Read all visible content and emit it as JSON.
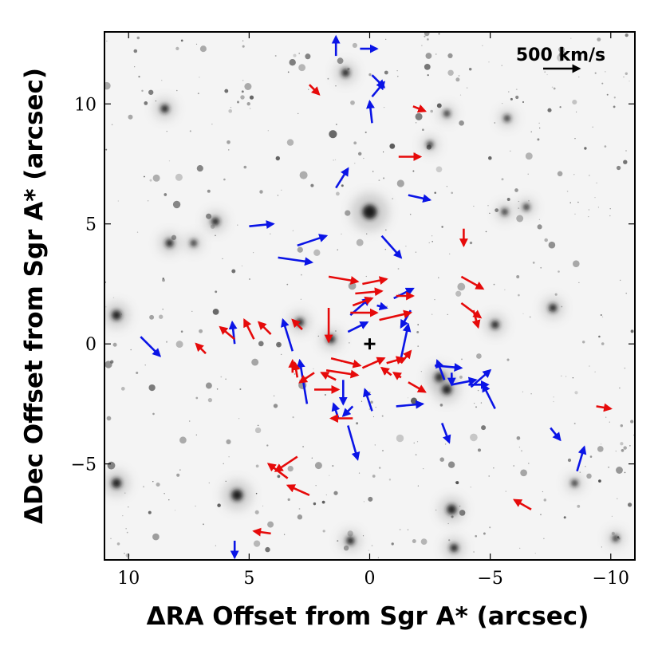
{
  "chart_data": {
    "type": "scatter",
    "title": "",
    "xlabel": "ΔRA Offset from Sgr A* (arcsec)",
    "ylabel": "ΔDec Offset from Sgr A* (arcsec)",
    "xlim": [
      11,
      -11
    ],
    "ylim": [
      -9,
      13
    ],
    "x_inverted": true,
    "xticks": [
      10,
      5,
      0,
      -5,
      -10
    ],
    "yticks": [
      -5,
      0,
      5,
      10
    ],
    "xtick_labels": [
      "10",
      "5",
      "0",
      "−5",
      "−10"
    ],
    "ytick_labels": [
      "−5",
      "0",
      "5",
      "10"
    ],
    "grid": false,
    "background": "grayscale near-infrared star field image",
    "reference_marker": {
      "name": "Sgr A*",
      "x": 0,
      "y": 0,
      "symbol": "+"
    },
    "scale_bar": {
      "label": "500 km/s",
      "dx_arcsec": -1.5
    },
    "velocity_arrows_note": "arrow length and direction show proper motion; blue = approaching, red = receding",
    "series": [
      {
        "color": "#0a14e6",
        "vectors": [
          [
            1.4,
            12.0,
            0.0,
            0.8
          ],
          [
            0.4,
            12.3,
            -0.7,
            0.0
          ],
          [
            -0.1,
            11.2,
            -0.5,
            -0.5
          ],
          [
            -0.1,
            10.3,
            -0.5,
            0.6
          ],
          [
            -0.1,
            9.2,
            0.1,
            0.9
          ],
          [
            1.4,
            6.5,
            -0.5,
            0.8
          ],
          [
            -1.6,
            6.2,
            -0.9,
            -0.2
          ],
          [
            5.0,
            4.9,
            -1.0,
            0.1
          ],
          [
            3.0,
            4.1,
            -1.2,
            0.4
          ],
          [
            3.8,
            3.6,
            -1.4,
            -0.2
          ],
          [
            -0.5,
            4.5,
            -0.8,
            -0.9
          ],
          [
            -1.0,
            1.9,
            -0.8,
            0.4
          ],
          [
            -0.3,
            1.6,
            -0.4,
            -0.1
          ],
          [
            -1.7,
            1.4,
            0.4,
            -0.7
          ],
          [
            0.8,
            1.2,
            -0.8,
            0.7
          ],
          [
            0.9,
            0.5,
            -0.8,
            0.4
          ],
          [
            9.5,
            0.3,
            -0.8,
            -0.8
          ],
          [
            5.6,
            0.0,
            0.1,
            0.9
          ],
          [
            3.2,
            -0.3,
            0.4,
            1.3
          ],
          [
            -1.3,
            -0.6,
            -0.3,
            1.4
          ],
          [
            -2.7,
            -0.9,
            -1.1,
            -0.1
          ],
          [
            1.1,
            -1.5,
            0.0,
            -1.0
          ],
          [
            2.6,
            -2.5,
            0.3,
            1.8
          ],
          [
            -0.1,
            -2.8,
            0.3,
            0.9
          ],
          [
            0.7,
            -2.6,
            0.4,
            -0.4
          ],
          [
            -1.1,
            -2.6,
            -1.1,
            0.1
          ],
          [
            -3.1,
            -1.5,
            0.3,
            0.8
          ],
          [
            -3.4,
            -1.7,
            -1.0,
            0.2
          ],
          [
            -4.1,
            -1.7,
            -0.8,
            0.0
          ],
          [
            -3.4,
            -1.2,
            0.0,
            -0.5
          ],
          [
            -4.2,
            -1.8,
            -0.8,
            0.7
          ],
          [
            -5.2,
            -2.7,
            0.5,
            1.0
          ],
          [
            1.3,
            -3.1,
            0.2,
            0.6
          ],
          [
            0.9,
            -3.4,
            -0.4,
            -1.4
          ],
          [
            -3.0,
            -3.3,
            -0.3,
            -0.8
          ],
          [
            -7.5,
            -3.5,
            -0.4,
            -0.5
          ],
          [
            -8.6,
            -5.3,
            -0.3,
            1.0
          ],
          [
            5.6,
            -8.2,
            0.0,
            -0.7
          ]
        ]
      },
      {
        "color": "#e60a0a",
        "vectors": [
          [
            2.5,
            10.8,
            -0.4,
            -0.4
          ],
          [
            -1.8,
            9.9,
            -0.5,
            -0.2
          ],
          [
            -1.2,
            7.8,
            -0.9,
            0.0
          ],
          [
            -3.9,
            4.8,
            0.0,
            -0.7
          ],
          [
            1.7,
            2.8,
            -1.2,
            -0.2
          ],
          [
            0.3,
            2.5,
            -1.0,
            0.2
          ],
          [
            -3.8,
            2.8,
            -0.9,
            -0.5
          ],
          [
            0.6,
            2.1,
            -1.1,
            0.1
          ],
          [
            -1.1,
            2.0,
            -0.7,
            0.0
          ],
          [
            0.7,
            1.6,
            -0.8,
            0.3
          ],
          [
            -3.8,
            1.7,
            -0.8,
            -0.6
          ],
          [
            -4.3,
            1.4,
            -0.2,
            -0.7
          ],
          [
            1.7,
            1.5,
            0.0,
            -1.4
          ],
          [
            0.8,
            1.3,
            -1.1,
            0.0
          ],
          [
            -0.4,
            1.0,
            -1.3,
            0.3
          ],
          [
            2.8,
            0.6,
            0.4,
            0.4
          ],
          [
            4.8,
            0.2,
            0.4,
            0.8
          ],
          [
            5.6,
            0.2,
            0.6,
            0.5
          ],
          [
            6.8,
            -0.4,
            0.4,
            0.4
          ],
          [
            4.1,
            0.4,
            0.5,
            0.5
          ],
          [
            -1.3,
            -0.8,
            -0.4,
            0.5
          ],
          [
            1.6,
            -0.6,
            -1.2,
            -0.3
          ],
          [
            1.8,
            -1.1,
            -1.3,
            -0.2
          ],
          [
            0.3,
            -1.0,
            -0.9,
            0.4
          ],
          [
            -0.7,
            -0.8,
            -0.7,
            0.2
          ],
          [
            -1.3,
            -1.4,
            0.3,
            0.2
          ],
          [
            3.2,
            -1.2,
            0.0,
            0.5
          ],
          [
            3.0,
            -1.4,
            0.1,
            0.6
          ],
          [
            2.3,
            -1.2,
            0.6,
            -0.4
          ],
          [
            1.4,
            -1.5,
            0.6,
            0.3
          ],
          [
            -1.6,
            -1.6,
            -0.7,
            -0.4
          ],
          [
            -0.9,
            -1.3,
            0.4,
            0.3
          ],
          [
            2.3,
            -1.9,
            -1.0,
            0.0
          ],
          [
            0.7,
            -3.1,
            0.9,
            0.0
          ],
          [
            3.0,
            -4.7,
            0.9,
            -0.6
          ],
          [
            3.4,
            -5.6,
            0.8,
            0.6
          ],
          [
            2.5,
            -6.3,
            0.9,
            0.4
          ],
          [
            4.1,
            -7.9,
            0.7,
            0.1
          ],
          [
            -6.7,
            -6.9,
            0.7,
            0.4
          ],
          [
            -9.4,
            -2.6,
            -0.6,
            -0.1
          ]
        ]
      }
    ]
  }
}
